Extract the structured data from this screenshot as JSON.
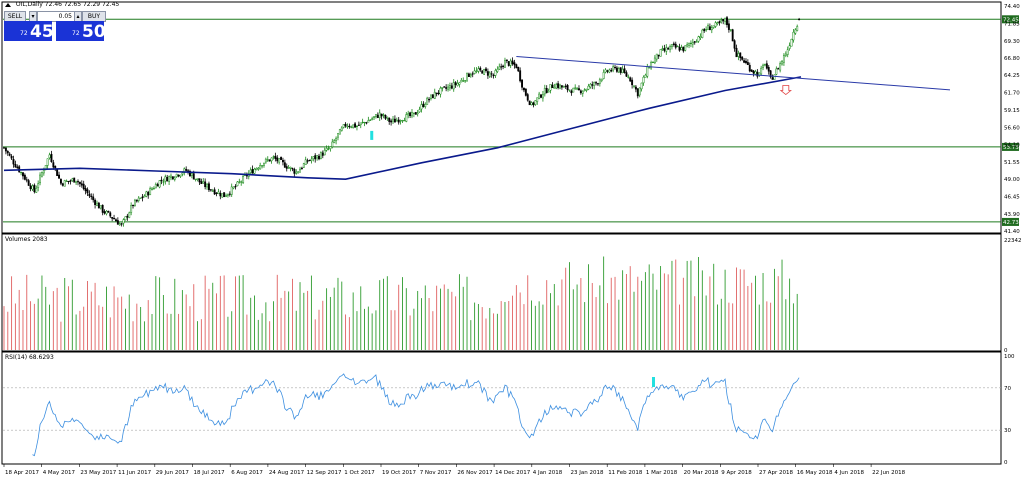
{
  "header": {
    "symbol_title": "OIL,Daily",
    "ohlc": "72.46 72.65 72.29 72.45"
  },
  "trade_widget": {
    "sell_label": "SELL",
    "buy_label": "BUY",
    "lot_value": "0.05",
    "sell_price_small": "72",
    "sell_price_large": "45",
    "buy_price_small": "72",
    "buy_price_large": "50"
  },
  "indicators": {
    "volume_label": "Volumes 2083",
    "rsi_label": "RSI(14) 68.6293"
  },
  "colors": {
    "bull": "#2e9b2e",
    "bear": "#e06060",
    "ma": "#0a1a8c",
    "trendline": "#2a3aa8",
    "hline": "#1f7a1f",
    "rsi": "#3d8fe0",
    "tag_bg": "#1f6b1f",
    "cyan_marker": "#22e0e0",
    "red_arrow": "#e04040"
  },
  "chart_data": [
    {
      "type": "candlestick",
      "title": "OIL,Daily",
      "x_date_labels": [
        "18 Apr 2017",
        "4 May 2017",
        "23 May 2017",
        "11 Jun 2017",
        "29 Jun 2017",
        "18 Jul 2017",
        "6 Aug 2017",
        "24 Aug 2017",
        "12 Sep 2017",
        "1 Oct 2017",
        "19 Oct 2017",
        "7 Nov 2017",
        "26 Nov 2017",
        "14 Dec 2017",
        "4 Jan 2018",
        "23 Jan 2018",
        "11 Feb 2018",
        "1 Mar 2018",
        "20 Mar 2018",
        "9 Apr 2018",
        "27 Apr 2018",
        "16 May 2018",
        "4 Jun 2018",
        "22 Jun 2018"
      ],
      "y_tick_labels": [
        "74.40",
        "71.85",
        "69.30",
        "66.80",
        "64.25",
        "61.70",
        "59.15",
        "56.60",
        "54.10",
        "51.55",
        "49.00",
        "46.45",
        "43.90",
        "41.40"
      ],
      "ylim": [
        41.4,
        74.4
      ],
      "anchors_close": [
        [
          0,
          53.6
        ],
        [
          5,
          51.5
        ],
        [
          10,
          49.6
        ],
        [
          16,
          47.2
        ],
        [
          24,
          52.6
        ],
        [
          30,
          48.4
        ],
        [
          38,
          49.0
        ],
        [
          45,
          46.6
        ],
        [
          52,
          44.4
        ],
        [
          58,
          43.2
        ],
        [
          62,
          42.2
        ],
        [
          68,
          45.3
        ],
        [
          75,
          46.8
        ],
        [
          82,
          48.7
        ],
        [
          90,
          49.6
        ],
        [
          96,
          50.3
        ],
        [
          104,
          48.4
        ],
        [
          110,
          47.4
        ],
        [
          116,
          46.6
        ],
        [
          122,
          47.9
        ],
        [
          128,
          49.6
        ],
        [
          136,
          51.4
        ],
        [
          142,
          52.1
        ],
        [
          148,
          51.1
        ],
        [
          154,
          50.0
        ],
        [
          160,
          51.7
        ],
        [
          166,
          52.4
        ],
        [
          172,
          53.6
        ],
        [
          176,
          55.5
        ],
        [
          180,
          57.0
        ],
        [
          186,
          56.8
        ],
        [
          192,
          57.6
        ],
        [
          198,
          58.5
        ],
        [
          204,
          57.4
        ],
        [
          210,
          58.0
        ],
        [
          216,
          58.4
        ],
        [
          222,
          60.3
        ],
        [
          228,
          61.7
        ],
        [
          234,
          62.4
        ],
        [
          240,
          63.2
        ],
        [
          246,
          64.6
        ],
        [
          252,
          64.9
        ],
        [
          258,
          64.2
        ],
        [
          264,
          66.2
        ],
        [
          270,
          65.6
        ],
        [
          274,
          62.0
        ],
        [
          278,
          59.8
        ],
        [
          284,
          61.7
        ],
        [
          290,
          62.9
        ],
        [
          296,
          62.3
        ],
        [
          302,
          61.9
        ],
        [
          306,
          62.2
        ],
        [
          312,
          63.1
        ],
        [
          318,
          64.9
        ],
        [
          324,
          65.2
        ],
        [
          330,
          63.7
        ],
        [
          334,
          61.6
        ],
        [
          340,
          65.7
        ],
        [
          346,
          67.6
        ],
        [
          352,
          68.4
        ],
        [
          358,
          68.1
        ],
        [
          364,
          69.3
        ],
        [
          370,
          71.1
        ],
        [
          376,
          71.6
        ],
        [
          380,
          72.3
        ],
        [
          383,
          70.7
        ],
        [
          386,
          67.3
        ],
        [
          390,
          66.3
        ],
        [
          394,
          65.0
        ],
        [
          398,
          64.3
        ],
        [
          401,
          66.1
        ],
        [
          404,
          63.6
        ],
        [
          407,
          64.9
        ],
        [
          410,
          66.4
        ],
        [
          413,
          68.1
        ],
        [
          416,
          70.6
        ],
        [
          419,
          72.45
        ]
      ],
      "horizontal_levels": [
        72.45,
        53.73,
        42.73
      ],
      "horizontal_level_tags": [
        "72.45",
        "53.73",
        "42.73"
      ],
      "moving_average": [
        [
          0,
          50.3
        ],
        [
          40,
          50.6
        ],
        [
          80,
          50.2
        ],
        [
          120,
          49.8
        ],
        [
          160,
          49.2
        ],
        [
          180,
          49.0
        ],
        [
          220,
          51.4
        ],
        [
          260,
          53.6
        ],
        [
          300,
          56.5
        ],
        [
          340,
          59.4
        ],
        [
          380,
          62.0
        ],
        [
          420,
          64.0
        ]
      ],
      "trendline": {
        "from": [
          270,
          67.0
        ],
        "to": [
          500,
          62.1
        ]
      },
      "markers": [
        {
          "kind": "cyan_bar",
          "at": [
            193,
            55.2
          ]
        },
        {
          "kind": "red_arrow",
          "at": [
            412,
            62.3
          ]
        }
      ]
    },
    {
      "type": "bar",
      "title": "Volumes 2083",
      "y_tick_labels": [
        "22342",
        "0"
      ],
      "ylim": [
        0,
        22342
      ]
    },
    {
      "type": "line",
      "title": "RSI(14) 68.6293",
      "y_tick_labels": [
        "100",
        "70",
        "30",
        "0"
      ],
      "ylim": [
        0,
        100
      ],
      "levels": [
        70,
        30
      ]
    }
  ]
}
